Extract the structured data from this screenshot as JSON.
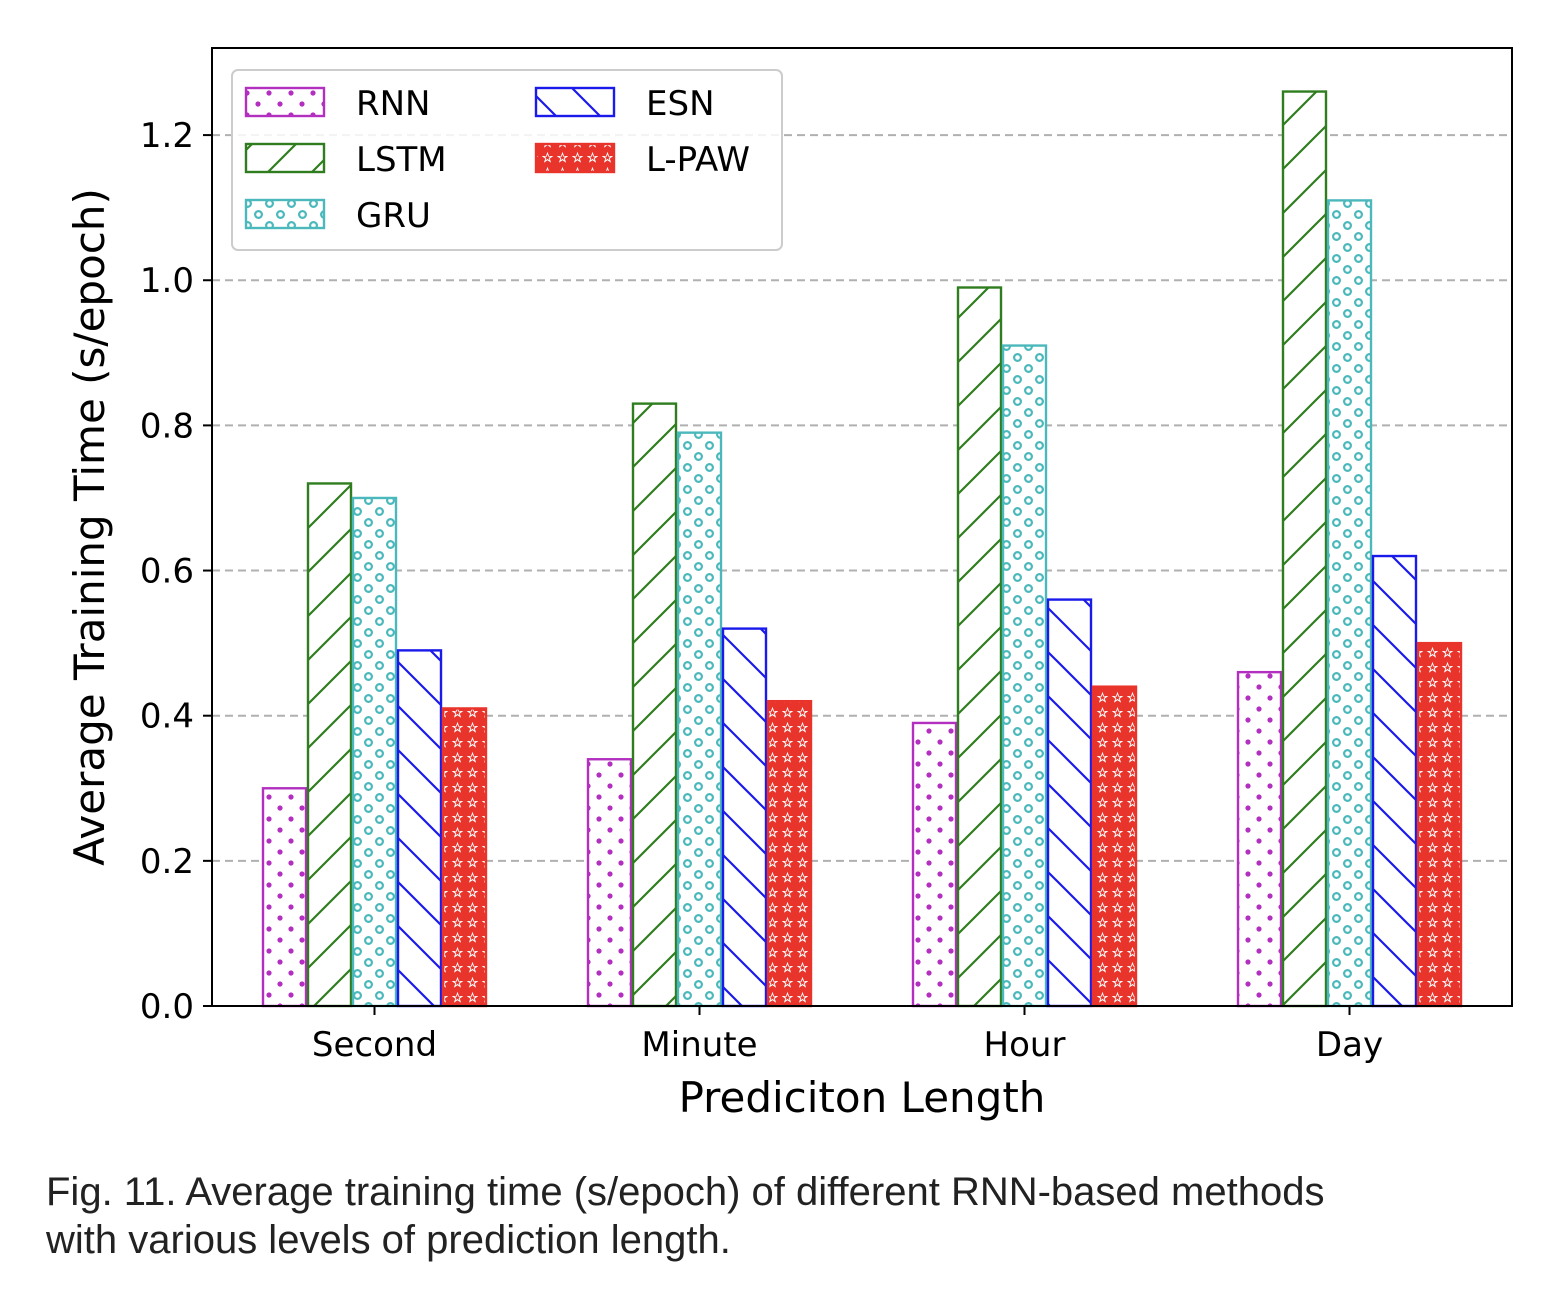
{
  "chart_data": {
    "type": "bar",
    "xlabel": "Prediciton Length",
    "ylabel": "Average Training Time (s/epoch)",
    "categories": [
      "Second",
      "Minute",
      "Hour",
      "Day"
    ],
    "ylim": [
      0,
      1.32
    ],
    "yticks": [
      "0.0",
      "0.2",
      "0.4",
      "0.6",
      "0.8",
      "1.0",
      "1.2"
    ],
    "grid": "y-dashed",
    "legend_position": "top-left",
    "series": [
      {
        "name": "RNN",
        "color": "#b32fc0",
        "pattern": "dots",
        "values": [
          0.3,
          0.34,
          0.39,
          0.46
        ]
      },
      {
        "name": "LSTM",
        "color": "#2f7d1f",
        "pattern": "slash",
        "values": [
          0.72,
          0.83,
          0.99,
          1.26
        ]
      },
      {
        "name": "GRU",
        "color": "#4bb8bc",
        "pattern": "circles",
        "values": [
          0.7,
          0.79,
          0.91,
          1.11
        ]
      },
      {
        "name": "ESN",
        "color": "#1a1aea",
        "pattern": "backslash",
        "values": [
          0.49,
          0.52,
          0.56,
          0.62
        ]
      },
      {
        "name": "L-PAW",
        "color": "#e8342a",
        "pattern": "stars",
        "values": [
          0.41,
          0.42,
          0.44,
          0.5
        ]
      }
    ]
  },
  "caption": {
    "line1": "Fig. 11. Average training time (s/epoch) of different RNN-based methods",
    "line2": "with various levels of prediction length."
  }
}
